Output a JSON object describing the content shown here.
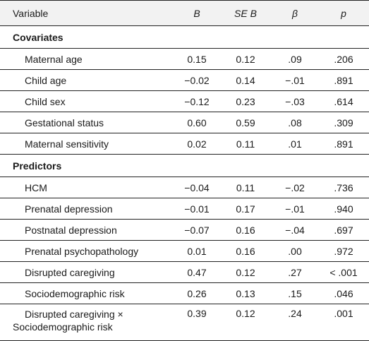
{
  "header": {
    "variable": "Variable",
    "b": "B",
    "se_b": "SE B",
    "beta": "β",
    "p": "p"
  },
  "sections": [
    {
      "title": "Covariates",
      "rows": [
        {
          "name": "Maternal age",
          "b": "0.15",
          "se": "0.12",
          "beta": ".09",
          "p": ".206"
        },
        {
          "name": "Child age",
          "b": "−0.02",
          "se": "0.14",
          "beta": "−.01",
          "p": ".891"
        },
        {
          "name": "Child sex",
          "b": "−0.12",
          "se": "0.23",
          "beta": "−.03",
          "p": ".614"
        },
        {
          "name": "Gestational status",
          "b": "0.60",
          "se": "0.59",
          "beta": ".08",
          "p": ".309"
        },
        {
          "name": "Maternal sensitivity",
          "b": "0.02",
          "se": "0.11",
          "beta": ".01",
          "p": ".891"
        }
      ]
    },
    {
      "title": "Predictors",
      "rows": [
        {
          "name": "HCM",
          "b": "−0.04",
          "se": "0.11",
          "beta": "−.02",
          "p": ".736"
        },
        {
          "name": "Prenatal depression",
          "b": "−0.01",
          "se": "0.17",
          "beta": "−.01",
          "p": ".940"
        },
        {
          "name": "Postnatal depression",
          "b": "−0.07",
          "se": "0.16",
          "beta": "−.04",
          "p": ".697"
        },
        {
          "name": "Prenatal psychopathology",
          "b": "0.01",
          "se": "0.16",
          "beta": ".00",
          "p": ".972"
        },
        {
          "name": "Disrupted caregiving",
          "b": "0.47",
          "se": "0.12",
          "beta": ".27",
          "p": "< .001"
        },
        {
          "name": "Sociodemographic risk",
          "b": "0.26",
          "se": "0.13",
          "beta": ".15",
          "p": ".046"
        },
        {
          "name_line1": "Disrupted caregiving ×",
          "name_line2": "Sociodemographic risk",
          "b": "0.39",
          "se": "0.12",
          "beta": ".24",
          "p": ".001"
        }
      ]
    }
  ]
}
